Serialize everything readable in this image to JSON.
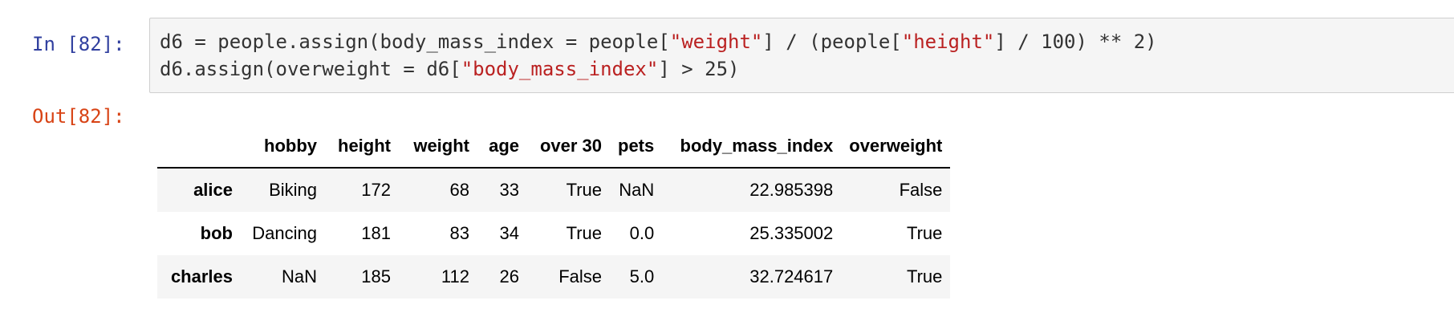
{
  "input_cell": {
    "prompt": "In [82]:",
    "code_line1": {
      "a": "d6 = people.assign(body_mass_index = people[",
      "s1": "\"weight\"",
      "b": "] / (people[",
      "s2": "\"height\"",
      "c": "] / 100) ** 2)"
    },
    "code_line2": {
      "a": "d6.assign(overweight = d6[",
      "s1": "\"body_mass_index\"",
      "b": "] > 25)"
    }
  },
  "output_cell": {
    "prompt": "Out[82]:",
    "table": {
      "columns": [
        "",
        "hobby",
        "height",
        "weight",
        "age",
        "over 30",
        "pets",
        "body_mass_index",
        "overweight"
      ],
      "rows": [
        {
          "index": "alice",
          "cells": [
            "Biking",
            "172",
            "68",
            "33",
            "True",
            "NaN",
            "22.985398",
            "False"
          ]
        },
        {
          "index": "bob",
          "cells": [
            "Dancing",
            "181",
            "83",
            "34",
            "True",
            "0.0",
            "25.335002",
            "True"
          ]
        },
        {
          "index": "charles",
          "cells": [
            "NaN",
            "185",
            "112",
            "26",
            "False",
            "5.0",
            "32.724617",
            "True"
          ]
        }
      ]
    }
  }
}
